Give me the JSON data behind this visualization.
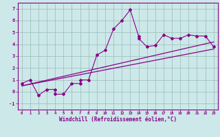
{
  "xlabel": "Windchill (Refroidissement éolien,°C)",
  "bg_color": "#cce8e8",
  "line_color": "#880088",
  "scatter_x": [
    0,
    1,
    2,
    3,
    4,
    4,
    5,
    6,
    7,
    7,
    8,
    9,
    10,
    11,
    12,
    13,
    14,
    14,
    15,
    16,
    17,
    18,
    19,
    20,
    21,
    22,
    23
  ],
  "scatter_y": [
    0.7,
    1.0,
    -0.3,
    0.2,
    0.2,
    -0.2,
    -0.2,
    0.7,
    0.7,
    1.0,
    1.0,
    3.1,
    3.5,
    5.3,
    6.0,
    6.9,
    4.7,
    4.5,
    3.8,
    3.9,
    4.8,
    4.5,
    4.5,
    4.8,
    4.7,
    4.7,
    3.8
  ],
  "line1_x": [
    0,
    23
  ],
  "line1_y": [
    0.5,
    3.6
  ],
  "line2_x": [
    0,
    23
  ],
  "line2_y": [
    0.5,
    4.2
  ],
  "xlim": [
    -0.5,
    23.5
  ],
  "ylim": [
    -1.5,
    7.5
  ],
  "xticks": [
    0,
    1,
    2,
    3,
    4,
    5,
    6,
    7,
    8,
    9,
    10,
    11,
    12,
    13,
    14,
    15,
    16,
    17,
    18,
    19,
    20,
    21,
    22,
    23
  ],
  "yticks": [
    -1,
    0,
    1,
    2,
    3,
    4,
    5,
    6,
    7
  ],
  "grid_color": "#99bbbb"
}
